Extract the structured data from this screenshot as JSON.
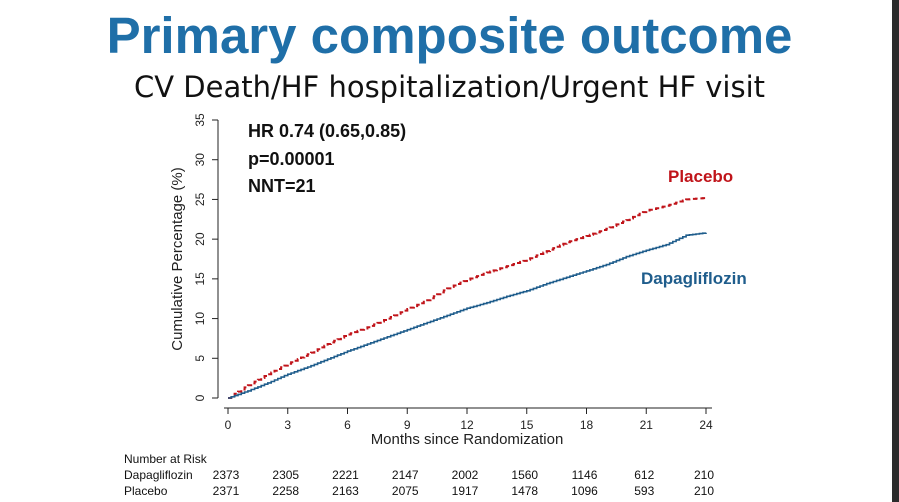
{
  "title": "Primary composite outcome",
  "subtitle": "CV Death/HF hospitalization/Urgent HF visit",
  "colors": {
    "title": "#1f6fa8",
    "placebo": "#c0141a",
    "dapagliflozin": "#1f5d8c"
  },
  "chart_data": {
    "type": "line",
    "title": "",
    "xlabel": "Months since Randomization",
    "ylabel": "Cumulative Percentage (%)",
    "xlim": [
      0,
      24
    ],
    "ylim": [
      0,
      35
    ],
    "xticks": [
      0,
      3,
      6,
      9,
      12,
      15,
      18,
      21,
      24
    ],
    "yticks": [
      0,
      5,
      10,
      15,
      20,
      25,
      30,
      35
    ],
    "grid": false,
    "annotations": {
      "hr": "HR 0.74 (0.65,0.85)",
      "p": "p=0.00001",
      "nnt": "NNT=21"
    },
    "series": [
      {
        "name": "Placebo",
        "style": "dashed",
        "x": [
          0,
          1,
          2,
          3,
          4,
          5,
          6,
          7,
          8,
          9,
          10,
          11,
          12,
          13,
          14,
          15,
          16,
          17,
          18,
          19,
          20,
          21,
          22,
          23,
          24
        ],
        "y": [
          0,
          1.6,
          3.0,
          4.3,
          5.5,
          6.8,
          8.0,
          8.9,
          10.0,
          11.2,
          12.3,
          13.8,
          14.9,
          15.8,
          16.6,
          17.4,
          18.5,
          19.6,
          20.4,
          21.3,
          22.4,
          23.6,
          24.2,
          25.0,
          25.2
        ]
      },
      {
        "name": "Dapagliflozin",
        "style": "solid",
        "x": [
          0,
          1,
          2,
          3,
          4,
          5,
          6,
          7,
          8,
          9,
          10,
          11,
          12,
          13,
          14,
          15,
          16,
          17,
          18,
          19,
          20,
          21,
          22,
          23,
          24
        ],
        "y": [
          0,
          0.9,
          1.9,
          3.0,
          3.9,
          4.9,
          5.9,
          6.8,
          7.7,
          8.6,
          9.5,
          10.4,
          11.3,
          12.0,
          12.8,
          13.5,
          14.4,
          15.2,
          16.0,
          16.8,
          17.8,
          18.6,
          19.3,
          20.5,
          20.8
        ]
      }
    ],
    "at_risk": {
      "title": "Number at Risk",
      "times": [
        0,
        3,
        6,
        9,
        12,
        15,
        18,
        21,
        24
      ],
      "rows": [
        {
          "name": "Dapagliflozin",
          "values": [
            2373,
            2305,
            2221,
            2147,
            2002,
            1560,
            1146,
            612,
            210
          ]
        },
        {
          "name": "Placebo",
          "values": [
            2371,
            2258,
            2163,
            2075,
            1917,
            1478,
            1096,
            593,
            210
          ]
        }
      ]
    }
  }
}
